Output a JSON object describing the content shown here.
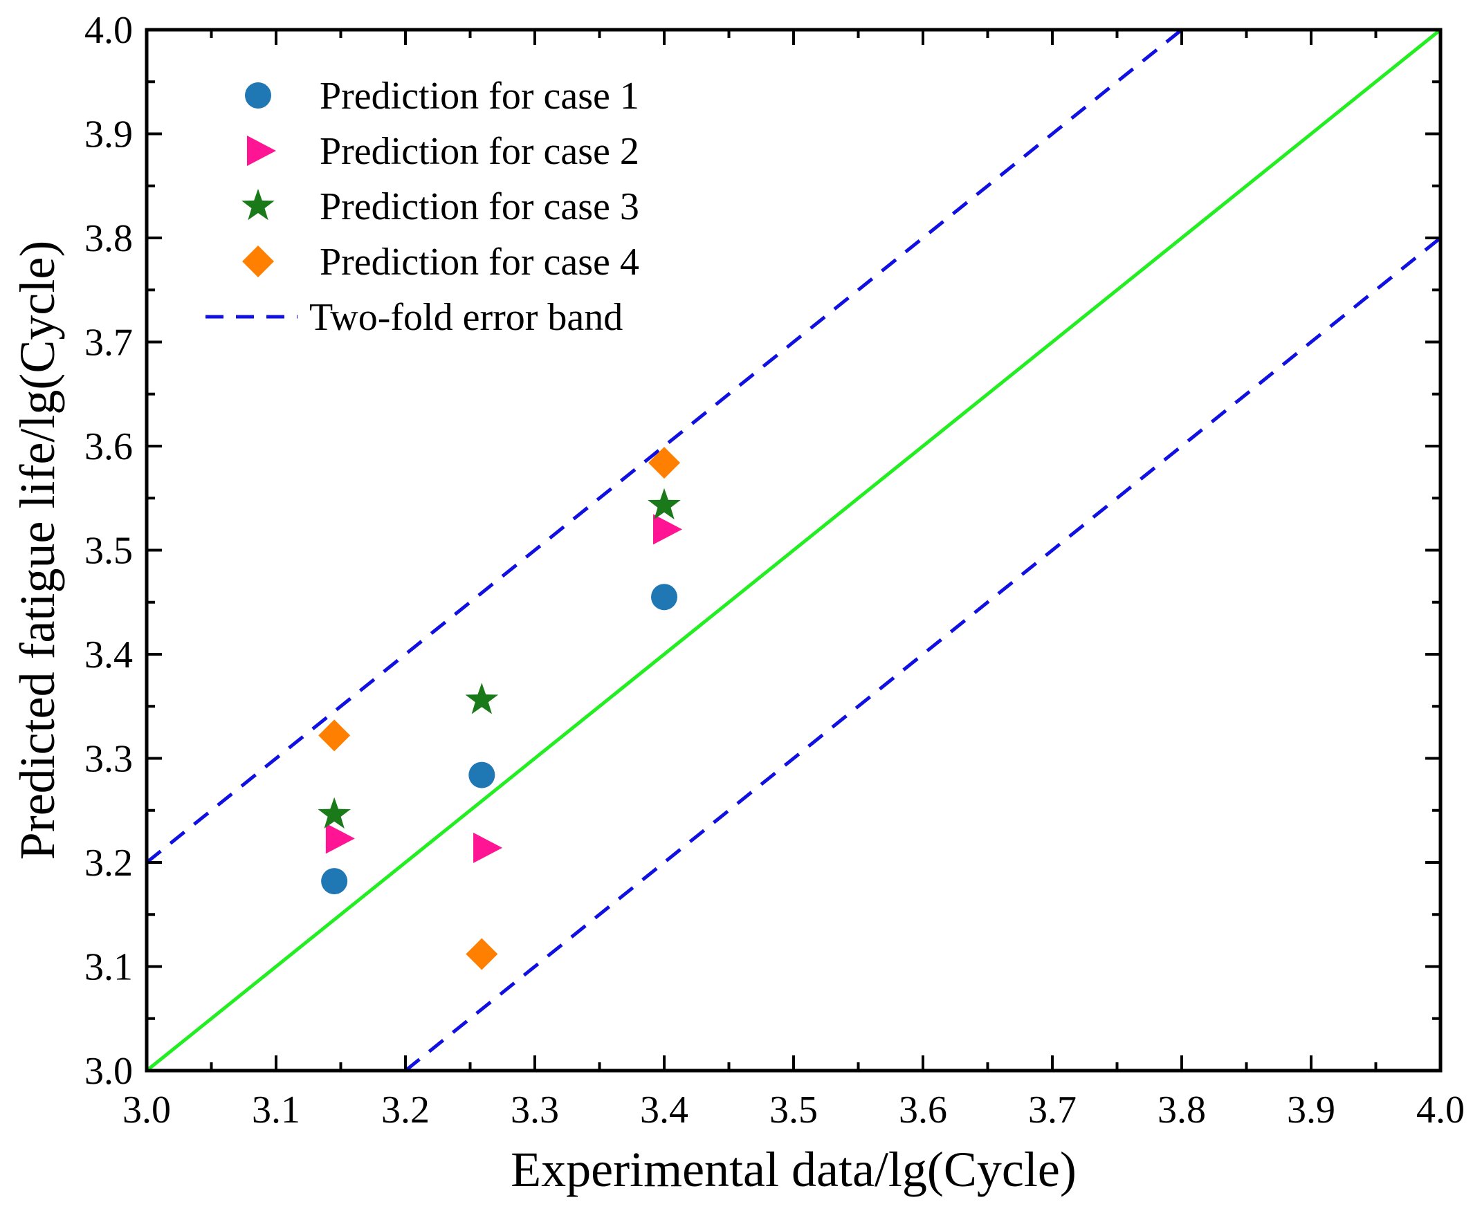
{
  "chart_data": {
    "type": "scatter",
    "title": "",
    "xlabel": "Experimental data/lg(Cycle)",
    "ylabel": "Predicted fatigue life/lg(Cycle)",
    "xlim": [
      3.0,
      4.0
    ],
    "ylim": [
      3.0,
      4.0
    ],
    "xticks": [
      "3.0",
      "3.1",
      "3.2",
      "3.3",
      "3.4",
      "3.5",
      "3.6",
      "3.7",
      "3.8",
      "3.9",
      "4.0"
    ],
    "yticks": [
      "3.0",
      "3.1",
      "3.2",
      "3.3",
      "3.4",
      "3.5",
      "3.6",
      "3.7",
      "3.8",
      "3.9",
      "4.0"
    ],
    "grid": false,
    "legend_position": "top-left",
    "series": [
      {
        "name": "Prediction for case 1",
        "marker": "circle",
        "color": "#1f77b4",
        "points": [
          [
            3.145,
            3.182
          ],
          [
            3.259,
            3.284
          ],
          [
            3.4,
            3.455
          ]
        ]
      },
      {
        "name": "Prediction for case 2",
        "marker": "triangle-right",
        "color": "#ff1493",
        "points": [
          [
            3.147,
            3.223
          ],
          [
            3.261,
            3.214
          ],
          [
            3.4,
            3.52
          ]
        ]
      },
      {
        "name": "Prediction for case 3",
        "marker": "star",
        "color": "#1a7a1a",
        "points": [
          [
            3.145,
            3.246
          ],
          [
            3.259,
            3.356
          ],
          [
            3.4,
            3.543
          ]
        ]
      },
      {
        "name": "Prediction for case 4",
        "marker": "diamond",
        "color": "#ff8000",
        "points": [
          [
            3.145,
            3.322
          ],
          [
            3.259,
            3.112
          ],
          [
            3.4,
            3.584
          ]
        ]
      }
    ],
    "lines": [
      {
        "name": "Two-fold error band",
        "style": "dashed",
        "color": "#1010e0",
        "in_legend": true,
        "segments": [
          [
            [
              3.0,
              3.2
            ],
            [
              3.8,
              4.0
            ]
          ],
          [
            [
              3.2,
              3.0
            ],
            [
              4.0,
              3.8
            ]
          ]
        ]
      },
      {
        "name": "y = x",
        "style": "solid",
        "color": "#22ee22",
        "in_legend": false,
        "segments": [
          [
            [
              3.0,
              3.0
            ],
            [
              4.0,
              4.0
            ]
          ]
        ]
      }
    ]
  }
}
